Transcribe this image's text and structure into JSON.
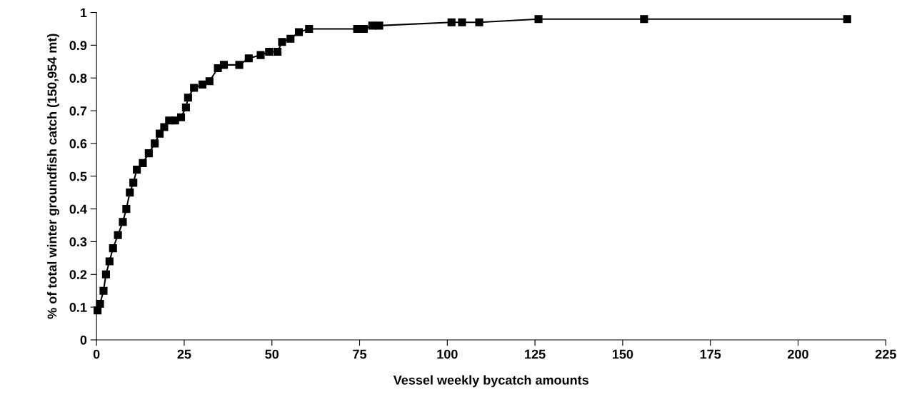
{
  "chart_data": {
    "type": "line",
    "xlabel": "Vessel weekly bycatch amounts",
    "ylabel": "% of total winter groundfish catch (150,954 mt)",
    "x": [
      0.3,
      1.0,
      2.0,
      2.7,
      3.7,
      4.7,
      6.1,
      7.5,
      8.5,
      9.5,
      10.5,
      11.5,
      13.2,
      14.9,
      16.6,
      18.0,
      19.3,
      20.7,
      22.4,
      24.1,
      25.5,
      26.1,
      27.8,
      30.2,
      32.2,
      34.6,
      36.3,
      40.7,
      43.4,
      46.8,
      49.2,
      51.6,
      52.9,
      55.3,
      57.7,
      60.6,
      74.3,
      76.2,
      78.6,
      80.6,
      101.2,
      104.2,
      109.1,
      126,
      156.1,
      214
    ],
    "series": [
      {
        "color": "#000000",
        "values": [
          0.09,
          0.11,
          0.15,
          0.2,
          0.24,
          0.28,
          0.32,
          0.36,
          0.4,
          0.45,
          0.48,
          0.52,
          0.54,
          0.57,
          0.6,
          0.63,
          0.65,
          0.67,
          0.67,
          0.68,
          0.71,
          0.74,
          0.77,
          0.78,
          0.79,
          0.83,
          0.84,
          0.84,
          0.86,
          0.87,
          0.88,
          0.88,
          0.91,
          0.92,
          0.94,
          0.95,
          0.95,
          0.95,
          0.96,
          0.96,
          0.97,
          0.97,
          0.97,
          0.98,
          0.98,
          0.98
        ]
      }
    ],
    "xlim": [
      0,
      225
    ],
    "xticks": [
      0,
      25,
      50,
      75,
      100,
      125,
      150,
      175,
      200,
      225
    ],
    "ylim": [
      0,
      1
    ],
    "yticks": [
      0,
      0.1,
      0.2,
      0.3,
      0.4,
      0.5,
      0.6,
      0.7,
      0.8,
      0.9,
      1
    ],
    "marker": "square",
    "line_style": "solid",
    "grid": false,
    "legend": false
  }
}
